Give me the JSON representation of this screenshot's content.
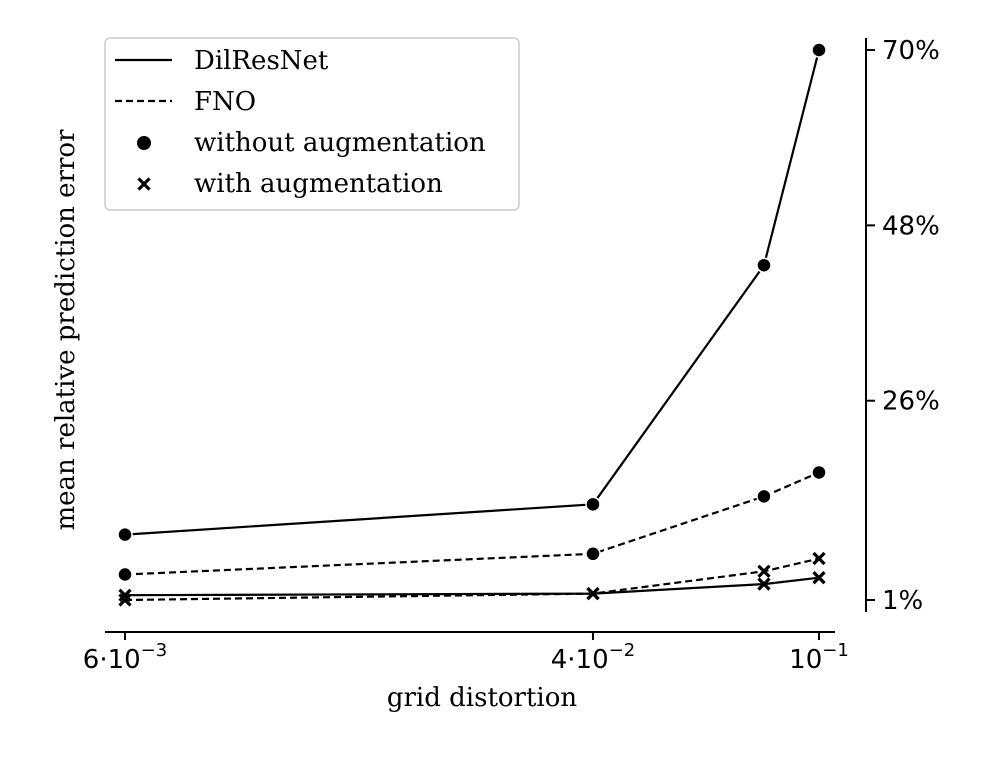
{
  "chart_data": {
    "type": "line",
    "xlabel": "grid distortion",
    "ylabel": "mean relative prediction error",
    "x_scale": "log",
    "x": [
      0.006,
      0.04,
      0.08,
      0.1
    ],
    "x_tick_labels": [
      {
        "value": 0.006,
        "mantissa": "6",
        "exponent": "−3"
      },
      {
        "value": 0.04,
        "mantissa": "4",
        "exponent": "−2"
      },
      {
        "value": 0.1,
        "mantissa": "",
        "exponent": "−1"
      }
    ],
    "y_tick_labels": [
      {
        "value": 1,
        "label": "1%"
      },
      {
        "value": 26,
        "label": "26%"
      },
      {
        "value": 48,
        "label": "48%"
      },
      {
        "value": 70,
        "label": "70%"
      }
    ],
    "y_axis_position": "right",
    "ylim": [
      -2,
      70
    ],
    "legend_position": "top-left",
    "legend": [
      {
        "label": "DilResNet",
        "kind": "solid-line"
      },
      {
        "label": "FNO",
        "kind": "dashed-line"
      },
      {
        "label": "without augmentation",
        "kind": "circle-marker"
      },
      {
        "label": "with augmentation",
        "kind": "x-marker"
      }
    ],
    "series": [
      {
        "model": "DilResNet",
        "augmentation": false,
        "style": "solid",
        "marker": "circle",
        "values": [
          9.2,
          13.0,
          43.0,
          70.0
        ]
      },
      {
        "model": "FNO",
        "augmentation": false,
        "style": "dashed",
        "marker": "circle",
        "values": [
          4.2,
          6.8,
          14.0,
          17.0
        ]
      },
      {
        "model": "DilResNet",
        "augmentation": true,
        "style": "solid",
        "marker": "x",
        "values": [
          1.6,
          1.8,
          3.0,
          3.8
        ]
      },
      {
        "model": "FNO",
        "augmentation": true,
        "style": "dashed",
        "marker": "x",
        "values": [
          1.0,
          1.8,
          4.6,
          6.2
        ]
      }
    ]
  },
  "colors": {
    "ink": "#000000",
    "background": "#ffffff",
    "legend_border": "#cccccc"
  }
}
